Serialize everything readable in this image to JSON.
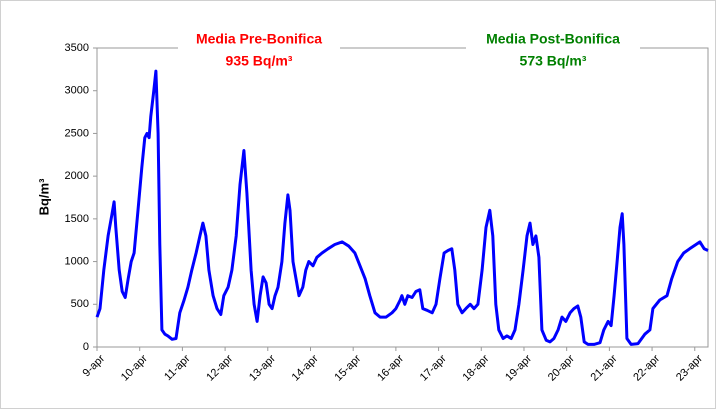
{
  "chart_data": {
    "type": "line",
    "ylabel": "Bq/m³",
    "annotations": [
      {
        "lines": [
          "Media Pre-Bonifica",
          "935 Bq/m³"
        ],
        "color": "#ff0000"
      },
      {
        "lines": [
          "Media Post-Bonifica",
          "573 Bq/m³"
        ],
        "color": "#008000"
      }
    ],
    "xlim": [
      9,
      23.31
    ],
    "xticks": [
      {
        "value": 9,
        "label": "9-apr"
      },
      {
        "value": 10,
        "label": "10-apr"
      },
      {
        "value": 11,
        "label": "11-apr"
      },
      {
        "value": 12,
        "label": "12-apr"
      },
      {
        "value": 13,
        "label": "13-apr"
      },
      {
        "value": 14,
        "label": "14-apr"
      },
      {
        "value": 15,
        "label": "15-apr"
      },
      {
        "value": 16,
        "label": "16-apr"
      },
      {
        "value": 17,
        "label": "17-apr"
      },
      {
        "value": 18,
        "label": "18-apr"
      },
      {
        "value": 19,
        "label": "19-apr"
      },
      {
        "value": 20,
        "label": "20-apr"
      },
      {
        "value": 21,
        "label": "21-apr"
      },
      {
        "value": 22,
        "label": "22-apr"
      },
      {
        "value": 23,
        "label": "23-apr"
      }
    ],
    "ylim": [
      0,
      3500
    ],
    "yticks": [
      0,
      500,
      1000,
      1500,
      2000,
      2500,
      3000,
      3500
    ],
    "grid": false,
    "series": [
      {
        "color": "#0000ff",
        "x": [
          9.0,
          9.07,
          9.16,
          9.26,
          9.35,
          9.4,
          9.44,
          9.52,
          9.59,
          9.66,
          9.73,
          9.8,
          9.87,
          9.96,
          10.05,
          10.12,
          10.17,
          10.22,
          10.26,
          10.33,
          10.38,
          10.43,
          10.47,
          10.52,
          10.59,
          10.66,
          10.76,
          10.85,
          10.94,
          11.04,
          11.13,
          11.22,
          11.32,
          11.41,
          11.48,
          11.55,
          11.62,
          11.72,
          11.81,
          11.9,
          11.97,
          12.07,
          12.16,
          12.26,
          12.35,
          12.44,
          12.51,
          12.61,
          12.68,
          12.75,
          12.82,
          12.89,
          12.96,
          13.03,
          13.1,
          13.17,
          13.24,
          13.33,
          13.4,
          13.47,
          13.52,
          13.59,
          13.66,
          13.73,
          13.82,
          13.89,
          13.96,
          14.06,
          14.15,
          14.27,
          14.41,
          14.57,
          14.74,
          14.9,
          15.04,
          15.16,
          15.28,
          15.39,
          15.51,
          15.63,
          15.77,
          15.91,
          16.0,
          16.1,
          16.14,
          16.21,
          16.28,
          16.38,
          16.47,
          16.56,
          16.63,
          16.73,
          16.85,
          16.94,
          17.03,
          17.13,
          17.22,
          17.31,
          17.38,
          17.45,
          17.55,
          17.64,
          17.74,
          17.83,
          17.92,
          18.02,
          18.11,
          18.2,
          18.27,
          18.34,
          18.41,
          18.51,
          18.6,
          18.7,
          18.79,
          18.88,
          18.98,
          19.07,
          19.14,
          19.21,
          19.28,
          19.35,
          19.42,
          19.52,
          19.61,
          19.7,
          19.8,
          19.89,
          19.98,
          20.08,
          20.17,
          20.26,
          20.33,
          20.41,
          20.5,
          20.64,
          20.78,
          20.87,
          20.97,
          21.04,
          21.11,
          21.18,
          21.25,
          21.3,
          21.34,
          21.41,
          21.51,
          21.67,
          21.83,
          21.95,
          22.02,
          22.18,
          22.35,
          22.46,
          22.6,
          22.74,
          22.88,
          23.03,
          23.12,
          23.22,
          23.31
        ],
        "values": [
          350,
          450,
          900,
          1300,
          1550,
          1700,
          1400,
          900,
          650,
          580,
          800,
          1000,
          1100,
          1600,
          2100,
          2450,
          2500,
          2450,
          2700,
          3000,
          3230,
          2500,
          1200,
          200,
          150,
          130,
          90,
          100,
          400,
          550,
          700,
          900,
          1100,
          1300,
          1450,
          1300,
          900,
          600,
          450,
          380,
          600,
          700,
          900,
          1300,
          1900,
          2300,
          1800,
          900,
          500,
          300,
          600,
          820,
          750,
          500,
          450,
          600,
          700,
          1000,
          1450,
          1780,
          1600,
          1000,
          800,
          600,
          700,
          900,
          1000,
          950,
          1050,
          1100,
          1150,
          1200,
          1230,
          1180,
          1100,
          950,
          800,
          600,
          400,
          350,
          350,
          400,
          450,
          550,
          600,
          500,
          600,
          580,
          650,
          670,
          450,
          430,
          400,
          500,
          800,
          1100,
          1130,
          1150,
          900,
          500,
          400,
          450,
          500,
          450,
          500,
          900,
          1400,
          1600,
          1300,
          500,
          200,
          100,
          130,
          100,
          200,
          500,
          900,
          1300,
          1450,
          1200,
          1300,
          1050,
          200,
          80,
          60,
          100,
          200,
          350,
          300,
          400,
          450,
          480,
          350,
          60,
          30,
          30,
          50,
          200,
          300,
          250,
          600,
          1000,
          1400,
          1560,
          1200,
          100,
          30,
          40,
          150,
          200,
          450,
          550,
          600,
          800,
          1000,
          1100,
          1150,
          1200,
          1230,
          1150,
          1130
        ]
      }
    ]
  }
}
